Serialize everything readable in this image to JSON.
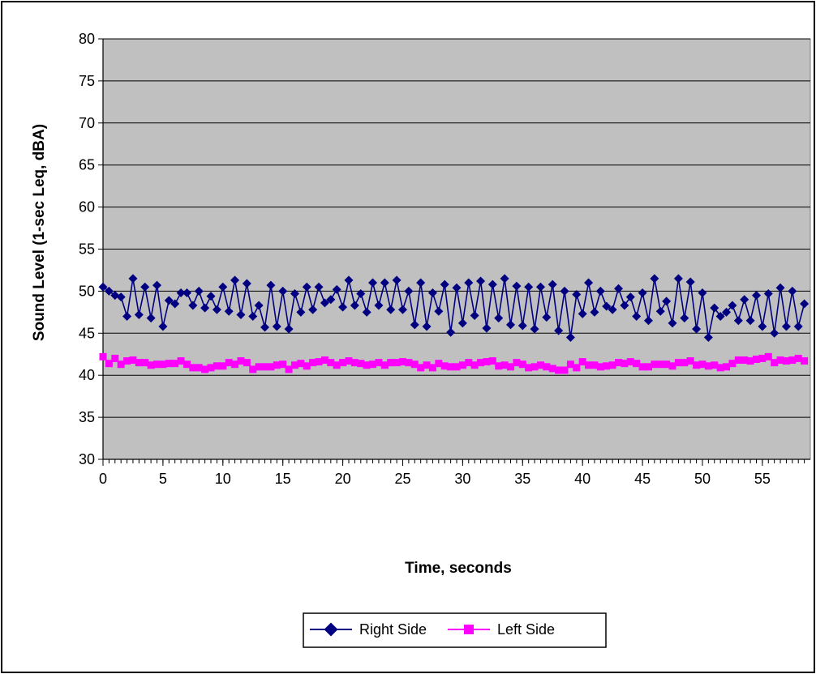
{
  "chart_data": {
    "type": "line",
    "title": "",
    "xlabel": "Time, seconds",
    "ylabel": "Sound Level (1-sec Leq, dBA)",
    "xlim": [
      0,
      59
    ],
    "ylim": [
      30,
      80
    ],
    "y_ticks": [
      30,
      35,
      40,
      45,
      50,
      55,
      60,
      65,
      70,
      75,
      80
    ],
    "x_ticks": [
      0,
      5,
      10,
      15,
      20,
      25,
      30,
      35,
      40,
      45,
      50,
      55
    ],
    "grid": true,
    "legend_position": "bottom",
    "plot_background": "#c0c0c0",
    "x": [
      0,
      0.5,
      1,
      1.5,
      2,
      2.5,
      3,
      3.5,
      4,
      4.5,
      5,
      5.5,
      6,
      6.5,
      7,
      7.5,
      8,
      8.5,
      9,
      9.5,
      10,
      10.5,
      11,
      11.5,
      12,
      12.5,
      13,
      13.5,
      14,
      14.5,
      15,
      15.5,
      16,
      16.5,
      17,
      17.5,
      18,
      18.5,
      19,
      19.5,
      20,
      20.5,
      21,
      21.5,
      22,
      22.5,
      23,
      23.5,
      24,
      24.5,
      25,
      25.5,
      26,
      26.5,
      27,
      27.5,
      28,
      28.5,
      29,
      29.5,
      30,
      30.5,
      31,
      31.5,
      32,
      32.5,
      33,
      33.5,
      34,
      34.5,
      35,
      35.5,
      36,
      36.5,
      37,
      37.5,
      38,
      38.5,
      39,
      39.5,
      40,
      40.5,
      41,
      41.5,
      42,
      42.5,
      43,
      43.5,
      44,
      44.5,
      45,
      45.5,
      46,
      46.5,
      47,
      47.5,
      48,
      48.5,
      49,
      49.5,
      50,
      50.5,
      51,
      51.5,
      52,
      52.5,
      53,
      53.5,
      54,
      54.5,
      55,
      55.5,
      56,
      56.5,
      57,
      57.5,
      58,
      58.5
    ],
    "series": [
      {
        "name": "Right Side",
        "color": "#000080",
        "marker": "diamond",
        "values": [
          50.5,
          50.0,
          49.5,
          49.3,
          47.0,
          51.5,
          47.2,
          50.5,
          46.8,
          50.7,
          45.8,
          48.9,
          48.5,
          49.8,
          49.8,
          48.3,
          50.0,
          48.0,
          49.4,
          47.8,
          50.5,
          47.6,
          51.3,
          47.2,
          50.9,
          47.0,
          48.3,
          45.7,
          50.7,
          45.8,
          50.0,
          45.5,
          49.7,
          47.5,
          50.5,
          47.8,
          50.5,
          48.6,
          49.0,
          50.2,
          48.1,
          51.3,
          48.3,
          49.7,
          47.5,
          51.0,
          48.3,
          51.0,
          47.8,
          51.3,
          47.8,
          50.0,
          46.0,
          51.0,
          45.8,
          49.8,
          47.6,
          50.8,
          45.1,
          50.4,
          46.2,
          51.0,
          47.1,
          51.2,
          45.6,
          50.8,
          46.8,
          51.5,
          46.0,
          50.6,
          45.9,
          50.5,
          45.5,
          50.5,
          46.9,
          50.8,
          45.3,
          50.0,
          44.5,
          49.6,
          47.3,
          51.0,
          47.5,
          50.0,
          48.2,
          47.8,
          50.3,
          48.3,
          49.3,
          47.0,
          49.8,
          46.5,
          51.5,
          47.6,
          48.8,
          46.2,
          51.5,
          46.8,
          51.1,
          45.5,
          49.8,
          44.5,
          48.0,
          47.0,
          47.5,
          48.3,
          46.5,
          49.0,
          46.5,
          49.5,
          45.8,
          49.7,
          45.0,
          50.4,
          45.8,
          50.0,
          45.8,
          48.5
        ]
      },
      {
        "name": "Left Side",
        "color": "#ff00ff",
        "marker": "square",
        "values": [
          42.2,
          41.4,
          42.0,
          41.3,
          41.7,
          41.8,
          41.5,
          41.5,
          41.2,
          41.3,
          41.3,
          41.4,
          41.4,
          41.7,
          41.3,
          40.9,
          40.9,
          40.7,
          40.9,
          41.1,
          41.1,
          41.5,
          41.3,
          41.7,
          41.5,
          40.7,
          41.0,
          41.0,
          41.0,
          41.2,
          41.3,
          40.7,
          41.2,
          41.4,
          41.1,
          41.5,
          41.6,
          41.8,
          41.5,
          41.2,
          41.5,
          41.7,
          41.5,
          41.4,
          41.2,
          41.3,
          41.5,
          41.2,
          41.5,
          41.5,
          41.6,
          41.5,
          41.3,
          40.9,
          41.2,
          40.9,
          41.4,
          41.1,
          41.0,
          41.0,
          41.2,
          41.5,
          41.2,
          41.5,
          41.6,
          41.7,
          41.1,
          41.2,
          41.0,
          41.5,
          41.3,
          40.9,
          41.0,
          41.2,
          41.0,
          40.8,
          40.6,
          40.6,
          41.3,
          40.9,
          41.6,
          41.2,
          41.2,
          41.0,
          41.1,
          41.2,
          41.5,
          41.4,
          41.6,
          41.4,
          41.0,
          41.0,
          41.3,
          41.3,
          41.3,
          41.1,
          41.5,
          41.5,
          41.7,
          41.2,
          41.3,
          41.1,
          41.2,
          40.9,
          41.0,
          41.4,
          41.8,
          41.8,
          41.7,
          41.9,
          42.0,
          42.2,
          41.5,
          41.8,
          41.7,
          41.8,
          42.0,
          41.7
        ]
      }
    ]
  }
}
